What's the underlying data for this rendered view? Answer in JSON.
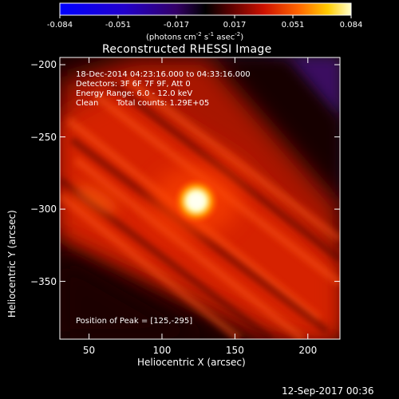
{
  "colorbar": {
    "ticks": [
      "-0.084",
      "-0.051",
      "-0.017",
      "0.017",
      "0.051",
      "0.084"
    ],
    "units_main": "(photons cm",
    "units_sup1": "-2",
    "units_mid1": " s",
    "units_sup2": "-1",
    "units_mid2": " asec",
    "units_sup3": "-2",
    "units_end": ")"
  },
  "title": "Reconstructed RHESSI Image",
  "info": {
    "line1": "18-Dec-2014 04:23:16.000 to 04:33:16.000",
    "line2": "Detectors: 3F 6F 7F 9F, Att 0",
    "line3": "Energy Range: 6.0 - 12.0 keV",
    "line4_a": "Clean",
    "line4_b": "Total counts: 1.29E+05",
    "peak": "Position of Peak = [125,-295]"
  },
  "axes": {
    "xlabel": "Heliocentric X (arcsec)",
    "ylabel": "Heliocentric Y (arcsec)",
    "xticks": [
      {
        "label": "50",
        "value": 50
      },
      {
        "label": "100",
        "value": 100
      },
      {
        "label": "150",
        "value": 150
      },
      {
        "label": "200",
        "value": 200
      }
    ],
    "yticks": [
      {
        "label": "−200",
        "value": -200
      },
      {
        "label": "−250",
        "value": -250
      },
      {
        "label": "−300",
        "value": -300
      },
      {
        "label": "−350",
        "value": -350
      }
    ],
    "xlim": [
      30,
      222
    ],
    "ylim": [
      -390,
      -195
    ]
  },
  "peak_position": [
    125,
    -295
  ],
  "footer_date": "12-Sep-2017 00:36"
}
